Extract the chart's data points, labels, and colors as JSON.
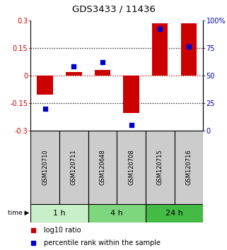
{
  "title": "GDS3433 / 11436",
  "samples": [
    "GSM120710",
    "GSM120711",
    "GSM120648",
    "GSM120708",
    "GSM120715",
    "GSM120716"
  ],
  "time_groups": [
    {
      "label": "1 h",
      "n_samples": 2,
      "color": "#c8f0c8"
    },
    {
      "label": "4 h",
      "n_samples": 2,
      "color": "#7dd87d"
    },
    {
      "label": "24 h",
      "n_samples": 2,
      "color": "#44bb44"
    }
  ],
  "log10_ratio": [
    -0.105,
    0.02,
    0.03,
    -0.205,
    0.285,
    0.285
  ],
  "percentile_rank": [
    20,
    58,
    62,
    5,
    92,
    76
  ],
  "ylim_left": [
    -0.3,
    0.3
  ],
  "ylim_right": [
    0,
    100
  ],
  "yticks_left": [
    -0.3,
    -0.15,
    0,
    0.15,
    0.3
  ],
  "ytick_labels_left": [
    "-0.3",
    "-0.15",
    "0",
    "0.15",
    "0.3"
  ],
  "yticks_right": [
    0,
    25,
    50,
    75,
    100
  ],
  "ytick_labels_right": [
    "0",
    "25",
    "50",
    "75",
    "100%"
  ],
  "hlines_black": [
    -0.15,
    0.15
  ],
  "bar_color": "#cc0000",
  "dot_color": "#0000cc",
  "zero_line_color": "#cc0000",
  "bar_width": 0.55,
  "dot_size": 18,
  "legend_items": [
    "log10 ratio",
    "percentile rank within the sample"
  ],
  "left_tick_color": "#cc0000",
  "right_tick_color": "#0000bb",
  "sample_box_color": "#cccccc",
  "title_fontsize": 9.5,
  "tick_fontsize": 7,
  "label_fontsize": 6,
  "time_fontsize": 8,
  "legend_fontsize": 7
}
